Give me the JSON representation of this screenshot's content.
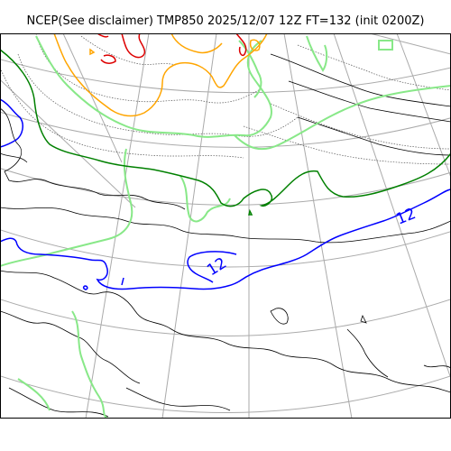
{
  "title": "NCEP(See disclaimer) TMP850 2025/12/07 12Z FT=132 (init 0200Z)",
  "contour_labels": [
    "12",
    "12"
  ],
  "colors": {
    "coastline": "#000000",
    "graticule": "#aaaaaa",
    "dotted_contour": "#555555",
    "isotherm_light_green": "#88e888",
    "isotherm_dark_green": "#008000",
    "isotherm_orange": "#ffa500",
    "isotherm_red": "#dd0000",
    "isotherm_blue": "#0000ff"
  }
}
